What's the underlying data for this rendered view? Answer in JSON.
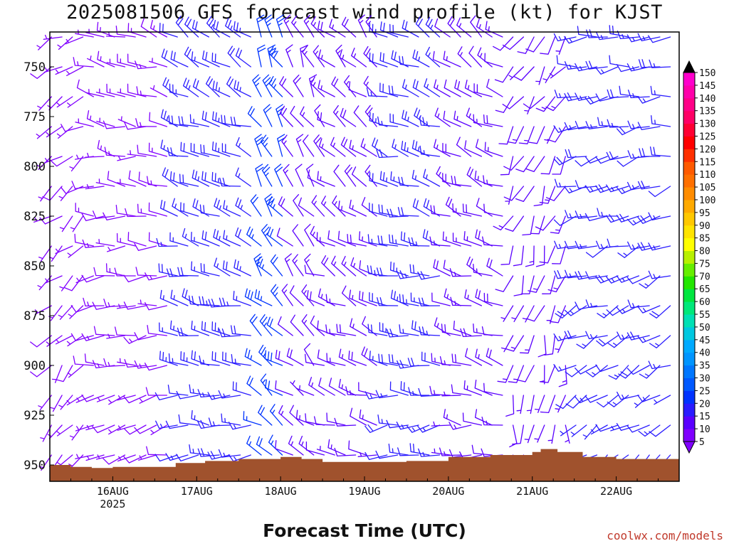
{
  "title": "2025081506 GFS forecast wind profile (kt) for KJST",
  "xlabel": "Forecast Time (UTC)",
  "credit": "coolwx.com/models",
  "chart_data": {
    "type": "wind-barb-time-height",
    "title": "2025081506 GFS forecast wind profile (kt) for KJST",
    "xlabel": "Forecast Time (UTC)",
    "ylabel": "",
    "y_ticks": [
      750,
      775,
      800,
      825,
      850,
      875,
      900,
      925,
      950
    ],
    "ylim": [
      730,
      958
    ],
    "y_axis_inverted": true,
    "x_ticks": [
      {
        "label": "16AUG",
        "sublabel": "2025",
        "day": 1
      },
      {
        "label": "17AUG",
        "sublabel": "",
        "day": 2
      },
      {
        "label": "18AUG",
        "sublabel": "",
        "day": 3
      },
      {
        "label": "19AUG",
        "sublabel": "",
        "day": 4
      },
      {
        "label": "20AUG",
        "sublabel": "",
        "day": 5
      },
      {
        "label": "21AUG",
        "sublabel": "",
        "day": 6
      },
      {
        "label": "22AUG",
        "sublabel": "",
        "day": 7
      }
    ],
    "xlim_days": [
      0.25,
      7.75
    ],
    "barb_levels_hpa": [
      735,
      750,
      765,
      780,
      795,
      810,
      825,
      840,
      855,
      870,
      885,
      900,
      915,
      930,
      945
    ],
    "barb_step_hours": 3,
    "colorbar": {
      "levels": [
        5,
        10,
        15,
        20,
        25,
        30,
        35,
        40,
        45,
        50,
        55,
        60,
        65,
        70,
        75,
        80,
        85,
        90,
        95,
        100,
        105,
        110,
        115,
        120,
        125,
        130,
        135,
        140,
        145,
        150
      ],
      "colors": [
        "#8000ff",
        "#5a00ff",
        "#2a1cff",
        "#0033ff",
        "#0059ff",
        "#0077ff",
        "#0095ff",
        "#00aaff",
        "#00c8e0",
        "#00e0b4",
        "#00e87a",
        "#00e640",
        "#22e600",
        "#66ee00",
        "#b8f000",
        "#ffff00",
        "#ffe400",
        "#ffc800",
        "#ffaa00",
        "#ff8c00",
        "#ff7000",
        "#ff5a00",
        "#ff3000",
        "#ff0000",
        "#ff0033",
        "#ff0066",
        "#ff0088",
        "#ff00aa",
        "#ff00cc",
        "#ff00ee"
      ],
      "top_color": "#000000",
      "bottom_color": "#8000ff"
    },
    "terrain_color": "#a0522d",
    "terrain_hpa": [
      {
        "day": 0.25,
        "p": 950
      },
      {
        "day": 0.5,
        "p": 951
      },
      {
        "day": 0.75,
        "p": 951.5
      },
      {
        "day": 1.0,
        "p": 951
      },
      {
        "day": 1.5,
        "p": 951
      },
      {
        "day": 1.75,
        "p": 949
      },
      {
        "day": 2.1,
        "p": 948
      },
      {
        "day": 2.5,
        "p": 947
      },
      {
        "day": 3.0,
        "p": 946
      },
      {
        "day": 3.25,
        "p": 947
      },
      {
        "day": 3.5,
        "p": 948.5
      },
      {
        "day": 4.0,
        "p": 948.5
      },
      {
        "day": 4.5,
        "p": 948
      },
      {
        "day": 5.0,
        "p": 946
      },
      {
        "day": 5.5,
        "p": 945
      },
      {
        "day": 6.0,
        "p": 943.5
      },
      {
        "day": 6.1,
        "p": 942
      },
      {
        "day": 6.3,
        "p": 943.5
      },
      {
        "day": 6.6,
        "p": 946
      },
      {
        "day": 7.0,
        "p": 947
      },
      {
        "day": 7.75,
        "p": 947
      }
    ],
    "wind_regimes": [
      {
        "day_range": [
          0.25,
          0.7
        ],
        "dir_deg": 230,
        "speed_kt": 5,
        "color_level": 5
      },
      {
        "day_range": [
          0.7,
          1.75
        ],
        "dir_deg": 270,
        "speed_kt": 10,
        "color_level": 5
      },
      {
        "day_range": [
          1.75,
          2.75
        ],
        "dir_deg": 285,
        "speed_kt": 20,
        "color_level": 15
      },
      {
        "day_range": [
          2.75,
          3.1
        ],
        "dir_deg": 320,
        "speed_kt": 25,
        "color_level": 20
      },
      {
        "day_range": [
          3.1,
          3.5
        ],
        "dir_deg": 320,
        "speed_kt": 15,
        "color_level": 10
      },
      {
        "day_range": [
          3.5,
          4.25
        ],
        "dir_deg": 300,
        "speed_kt": 15,
        "color_level": 10
      },
      {
        "day_range": [
          4.25,
          5.0
        ],
        "dir_deg": 280,
        "speed_kt": 20,
        "color_level": 15
      },
      {
        "day_range": [
          5.0,
          5.75
        ],
        "dir_deg": 290,
        "speed_kt": 15,
        "color_level": 10
      },
      {
        "day_range": [
          5.75,
          6.5
        ],
        "dir_deg": 200,
        "speed_kt": 10,
        "color_level": 10
      },
      {
        "day_range": [
          6.5,
          7.75
        ],
        "dir_deg": 250,
        "speed_kt": 15,
        "color_level": 15
      }
    ]
  }
}
